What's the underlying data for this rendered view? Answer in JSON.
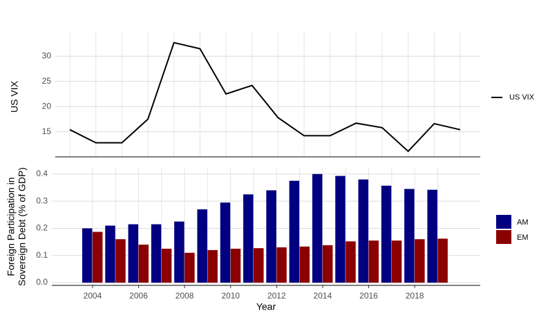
{
  "chart_data": [
    {
      "type": "line",
      "ylabel": "US VIX",
      "x": [
        2004,
        2005,
        2006,
        2007,
        2008,
        2009,
        2010,
        2011,
        2012,
        2013,
        2014,
        2015,
        2016,
        2017,
        2018,
        2019
      ],
      "series": [
        {
          "name": "US VIX",
          "color": "#000000",
          "values": [
            15.4,
            12.8,
            12.8,
            17.5,
            32.7,
            31.5,
            22.5,
            24.2,
            17.8,
            14.2,
            14.2,
            16.7,
            15.8,
            11.1,
            16.6,
            15.4
          ]
        }
      ],
      "xlim": [
        2003.44,
        2019.77
      ],
      "ylim": [
        10,
        35
      ],
      "yticks": [
        15,
        20,
        25,
        30
      ],
      "grid": true,
      "legend": "right"
    },
    {
      "type": "bar",
      "xlabel": "Year",
      "ylabel": [
        "Foreign Participation in",
        "Sovereign Debt (% of GDP)"
      ],
      "x": [
        2004,
        2005,
        2006,
        2007,
        2008,
        2009,
        2010,
        2011,
        2012,
        2013,
        2014,
        2015,
        2016,
        2017,
        2018,
        2019
      ],
      "series": [
        {
          "name": "AM",
          "color": "#000080",
          "values": [
            0.2,
            0.21,
            0.215,
            0.215,
            0.225,
            0.27,
            0.295,
            0.325,
            0.34,
            0.375,
            0.4,
            0.393,
            0.38,
            0.357,
            0.345,
            0.342
          ]
        },
        {
          "name": "EM",
          "color": "#8b0000",
          "values": [
            0.187,
            0.16,
            0.14,
            0.125,
            0.11,
            0.12,
            0.125,
            0.127,
            0.13,
            0.133,
            0.138,
            0.152,
            0.155,
            0.155,
            0.16,
            0.162
          ]
        }
      ],
      "xlim": [
        2002.23,
        2020.85
      ],
      "ylim": [
        -0.01,
        0.425
      ],
      "xticks": [
        2004,
        2006,
        2008,
        2010,
        2012,
        2014,
        2016,
        2018
      ],
      "yticks": [
        {
          "value": 0,
          "label": "0.0"
        },
        0.1,
        0.2,
        0.3,
        0.4
      ],
      "grid": true,
      "legend": "right"
    }
  ]
}
